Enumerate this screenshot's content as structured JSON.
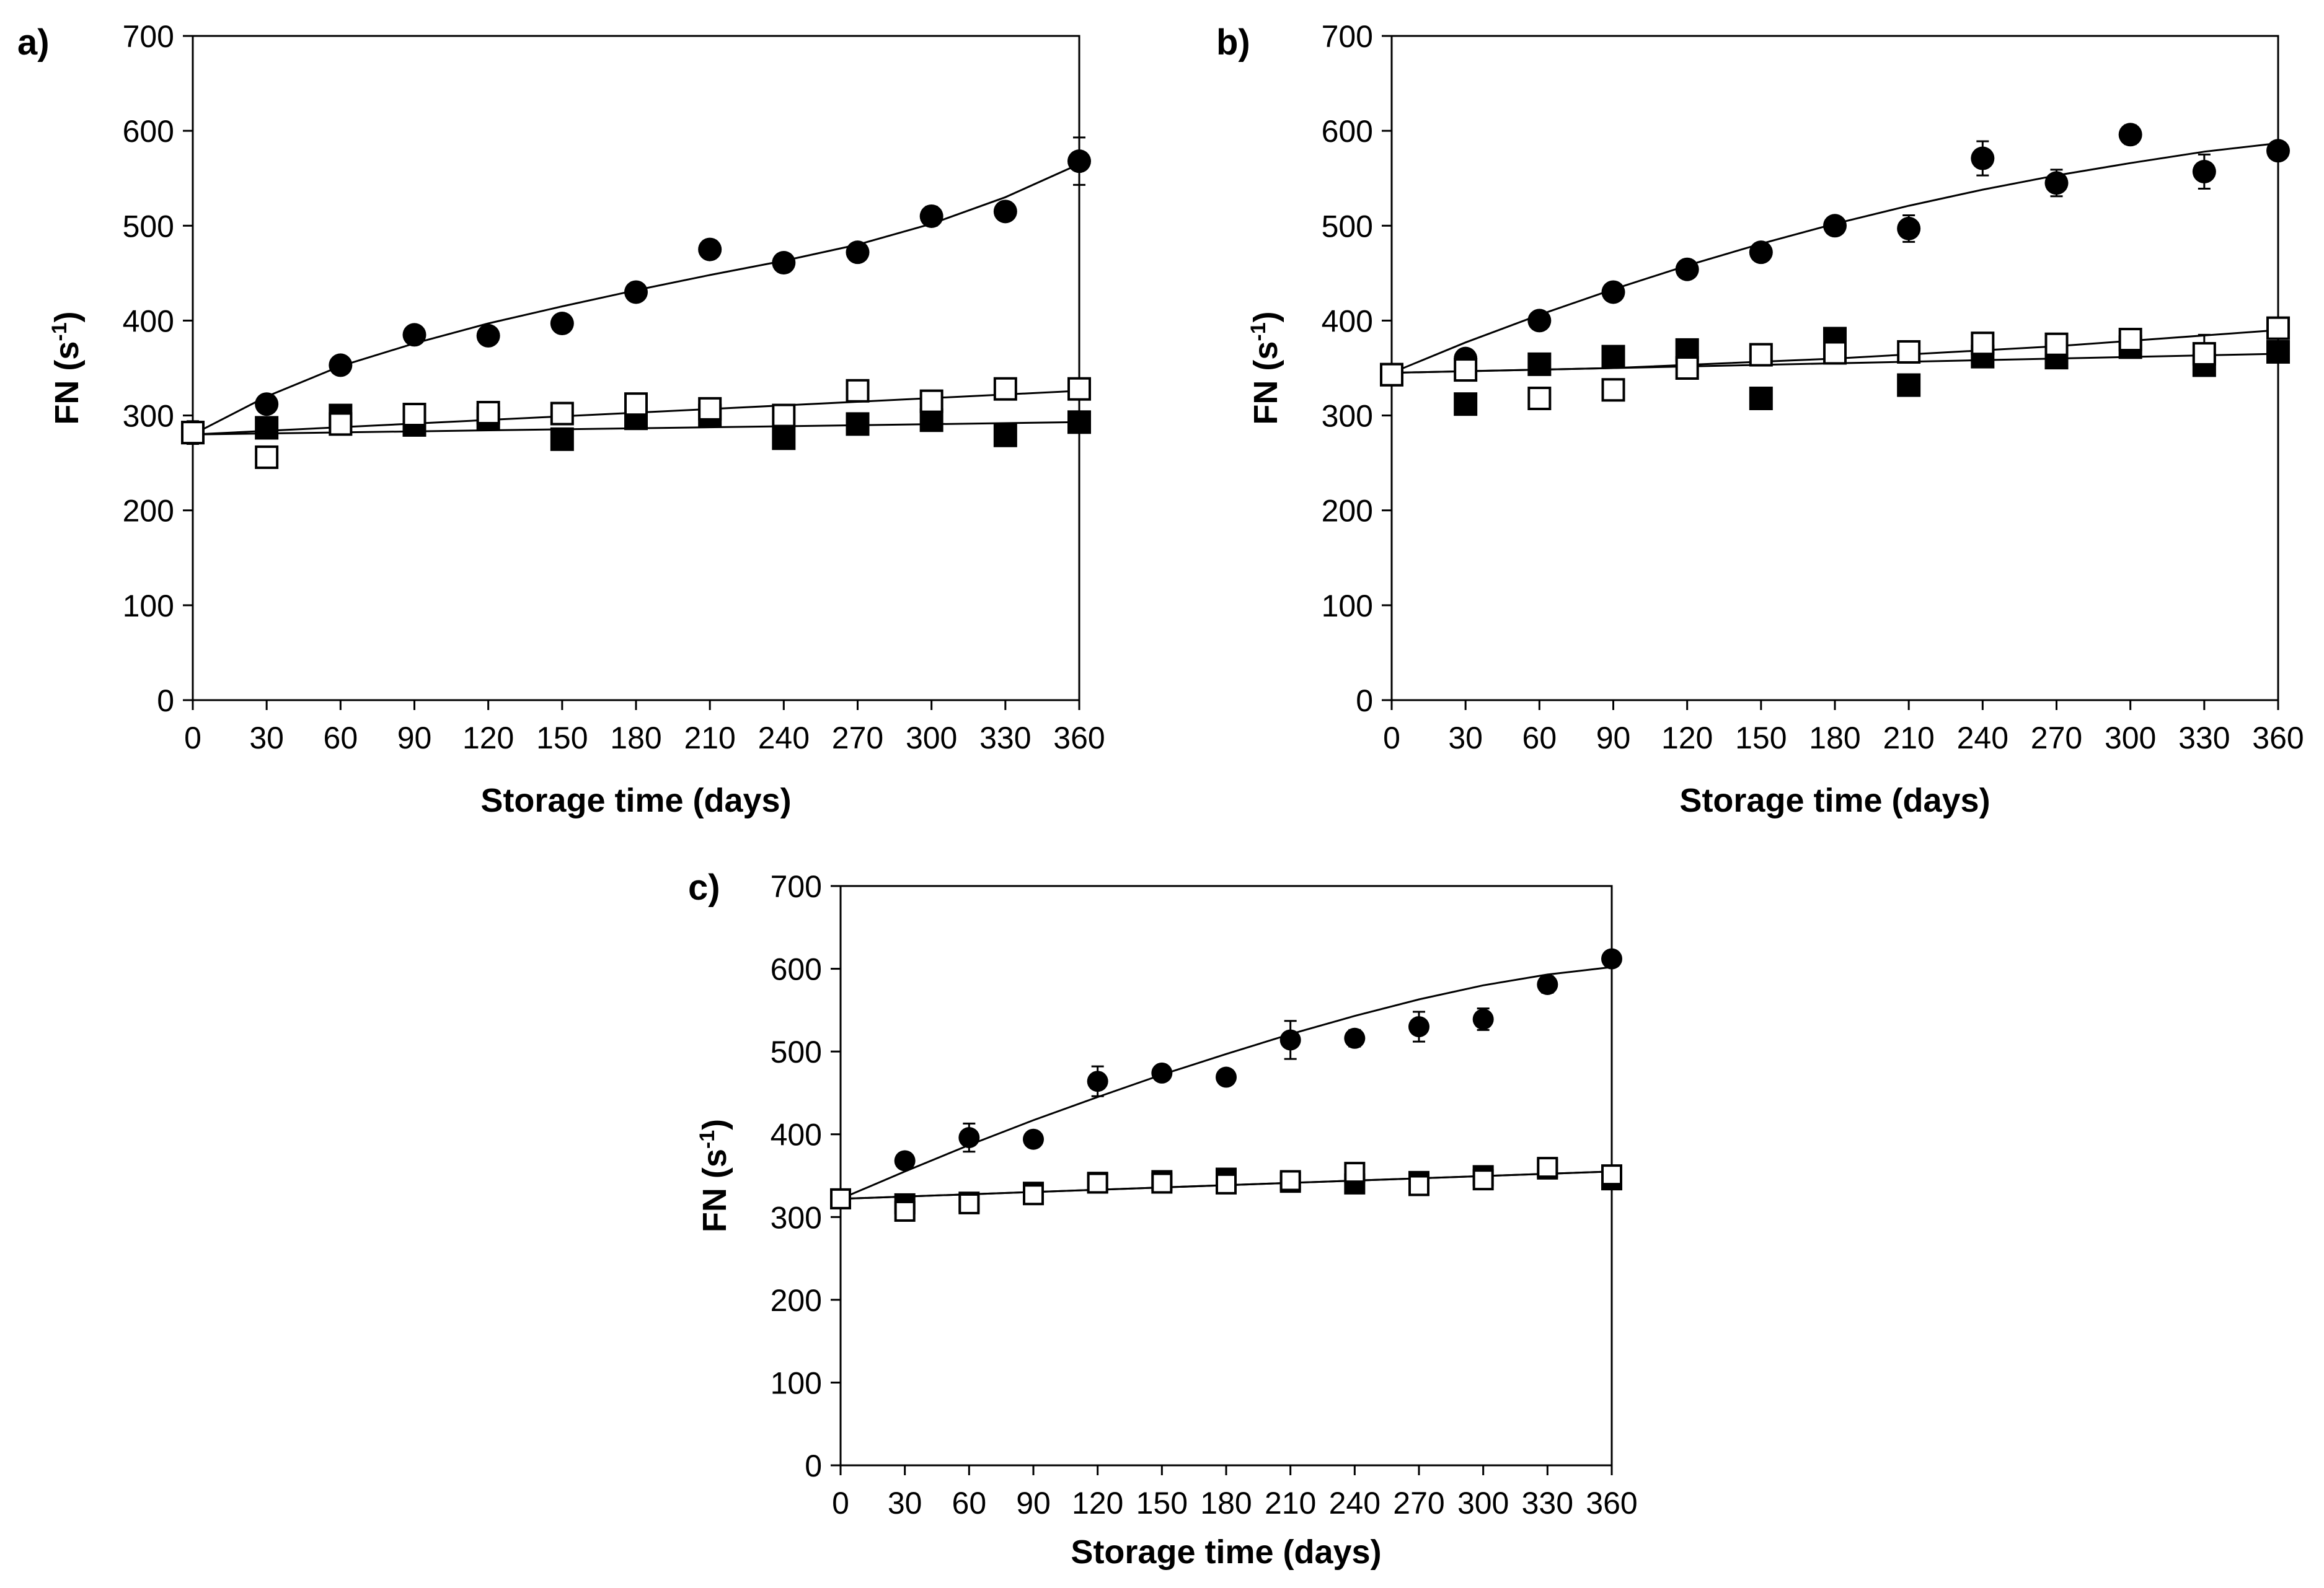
{
  "figure": {
    "background": "#ffffff",
    "ink_color": "#000000"
  },
  "chart_data": [
    {
      "type": "scatter",
      "panel_label": "a)",
      "title": "",
      "xlabel": "Storage time (days)",
      "ylabel_main": "FN (s",
      "ylabel_sup": "-1",
      "ylabel_close": ")",
      "xlim": [
        0,
        360
      ],
      "ylim": [
        0,
        700
      ],
      "xticks": [
        0,
        30,
        60,
        90,
        120,
        150,
        180,
        210,
        240,
        270,
        300,
        330,
        360
      ],
      "yticks": [
        0,
        100,
        200,
        300,
        400,
        500,
        600,
        700
      ],
      "x": [
        0,
        30,
        60,
        90,
        120,
        150,
        180,
        210,
        240,
        270,
        300,
        330,
        360
      ],
      "series": [
        {
          "name": "filled-circle",
          "marker": "circle-filled",
          "values": [
            282,
            312,
            353,
            385,
            384,
            397,
            430,
            475,
            461,
            472,
            510,
            515,
            568
          ],
          "errors": [
            0,
            0,
            0,
            0,
            0,
            0,
            0,
            0,
            0,
            0,
            10,
            0,
            25
          ],
          "fit": [
            [
              0,
              280
            ],
            [
              30,
              320
            ],
            [
              60,
              352
            ],
            [
              90,
              376
            ],
            [
              120,
              397
            ],
            [
              150,
              415
            ],
            [
              180,
              432
            ],
            [
              210,
              448
            ],
            [
              240,
              463
            ],
            [
              270,
              480
            ],
            [
              300,
              502
            ],
            [
              330,
              530
            ],
            [
              360,
              565
            ]
          ]
        },
        {
          "name": "filled-square",
          "marker": "square-filled",
          "values": [
            282,
            287,
            300,
            290,
            297,
            275,
            297,
            300,
            276,
            291,
            295,
            279,
            293
          ],
          "errors": [
            0,
            0,
            0,
            0,
            0,
            0,
            0,
            0,
            0,
            0,
            0,
            0,
            0
          ],
          "fit": [
            [
              0,
              280
            ],
            [
              360,
              293
            ]
          ]
        },
        {
          "name": "open-square",
          "marker": "square-open",
          "values": [
            282,
            256,
            291,
            301,
            303,
            302,
            312,
            307,
            300,
            326,
            315,
            328,
            328
          ],
          "errors": [
            12,
            0,
            0,
            0,
            0,
            0,
            0,
            0,
            0,
            0,
            0,
            0,
            0
          ],
          "fit": [
            [
              0,
              280
            ],
            [
              360,
              326
            ]
          ]
        }
      ]
    },
    {
      "type": "scatter",
      "panel_label": "b)",
      "title": "",
      "xlabel": "Storage time (days)",
      "ylabel_main": "FN (s",
      "ylabel_sup": "-1",
      "ylabel_close": ")",
      "xlim": [
        0,
        360
      ],
      "ylim": [
        0,
        700
      ],
      "xticks": [
        0,
        30,
        60,
        90,
        120,
        150,
        180,
        210,
        240,
        270,
        300,
        330,
        360
      ],
      "yticks": [
        0,
        100,
        200,
        300,
        400,
        500,
        600,
        700
      ],
      "x": [
        0,
        30,
        60,
        90,
        120,
        150,
        180,
        210,
        240,
        270,
        300,
        330,
        360
      ],
      "series": [
        {
          "name": "filled-circle",
          "marker": "circle-filled",
          "values": [
            343,
            360,
            400,
            430,
            454,
            472,
            500,
            497,
            571,
            545,
            596,
            557,
            579
          ],
          "errors": [
            0,
            0,
            0,
            0,
            0,
            0,
            0,
            14,
            18,
            14,
            10,
            18,
            0
          ],
          "fit": [
            [
              0,
              345
            ],
            [
              30,
              377
            ],
            [
              60,
              406
            ],
            [
              90,
              433
            ],
            [
              120,
              458
            ],
            [
              150,
              481
            ],
            [
              180,
              502
            ],
            [
              210,
              521
            ],
            [
              240,
              538
            ],
            [
              270,
              553
            ],
            [
              300,
              566
            ],
            [
              330,
              578
            ],
            [
              360,
              587
            ]
          ]
        },
        {
          "name": "filled-square",
          "marker": "square-filled",
          "values": [
            343,
            312,
            354,
            362,
            369,
            318,
            381,
            332,
            362,
            361,
            372,
            353,
            367
          ],
          "errors": [
            0,
            0,
            0,
            0,
            0,
            0,
            0,
            0,
            0,
            0,
            0,
            0,
            0
          ],
          "fit": [
            [
              0,
              345
            ],
            [
              360,
              365
            ]
          ]
        },
        {
          "name": "open-square",
          "marker": "square-open",
          "values": [
            343,
            348,
            318,
            327,
            350,
            364,
            366,
            367,
            376,
            375,
            380,
            365,
            392
          ],
          "errors": [
            0,
            0,
            0,
            0,
            0,
            0,
            0,
            0,
            0,
            0,
            0,
            20,
            0
          ],
          "fit": [
            [
              0,
              345
            ],
            [
              90,
              350
            ],
            [
              180,
              360
            ],
            [
              270,
              373
            ],
            [
              360,
              390
            ]
          ]
        }
      ]
    },
    {
      "type": "scatter",
      "panel_label": "c)",
      "title": "",
      "xlabel": "Storage time (days)",
      "ylabel_main": "FN (s",
      "ylabel_sup": "-1",
      "ylabel_close": ")",
      "xlim": [
        0,
        360
      ],
      "ylim": [
        0,
        700
      ],
      "xticks": [
        0,
        30,
        60,
        90,
        120,
        150,
        180,
        210,
        240,
        270,
        300,
        330,
        360
      ],
      "yticks": [
        0,
        100,
        200,
        300,
        400,
        500,
        600,
        700
      ],
      "x": [
        0,
        30,
        60,
        90,
        120,
        150,
        180,
        210,
        240,
        270,
        300,
        330,
        360
      ],
      "series": [
        {
          "name": "filled-circle",
          "marker": "circle-filled",
          "values": [
            322,
            368,
            396,
            394,
            464,
            474,
            469,
            514,
            516,
            530,
            539,
            581,
            612
          ],
          "errors": [
            0,
            0,
            17,
            0,
            18,
            0,
            0,
            23,
            10,
            18,
            13,
            10,
            0
          ],
          "fit": [
            [
              0,
              322
            ],
            [
              30,
              355
            ],
            [
              60,
              387
            ],
            [
              90,
              417
            ],
            [
              120,
              445
            ],
            [
              150,
              472
            ],
            [
              180,
              497
            ],
            [
              210,
              521
            ],
            [
              240,
              543
            ],
            [
              270,
              563
            ],
            [
              300,
              580
            ],
            [
              330,
              593
            ],
            [
              360,
              602
            ]
          ]
        },
        {
          "name": "filled-square",
          "marker": "square-filled",
          "values": [
            322,
            316,
            318,
            330,
            342,
            344,
            347,
            342,
            340,
            343,
            350,
            358,
            345
          ],
          "errors": [
            0,
            0,
            0,
            0,
            0,
            0,
            0,
            0,
            0,
            0,
            0,
            0,
            0
          ],
          "fit": [
            [
              0,
              322
            ],
            [
              360,
              355
            ]
          ]
        },
        {
          "name": "open-square",
          "marker": "square-open",
          "values": [
            322,
            307,
            316,
            327,
            341,
            341,
            340,
            344,
            354,
            338,
            345,
            360,
            351
          ],
          "errors": [
            0,
            0,
            0,
            0,
            0,
            0,
            0,
            0,
            0,
            0,
            0,
            0,
            0
          ],
          "fit": [
            [
              0,
              322
            ],
            [
              360,
              355
            ]
          ]
        }
      ]
    }
  ]
}
